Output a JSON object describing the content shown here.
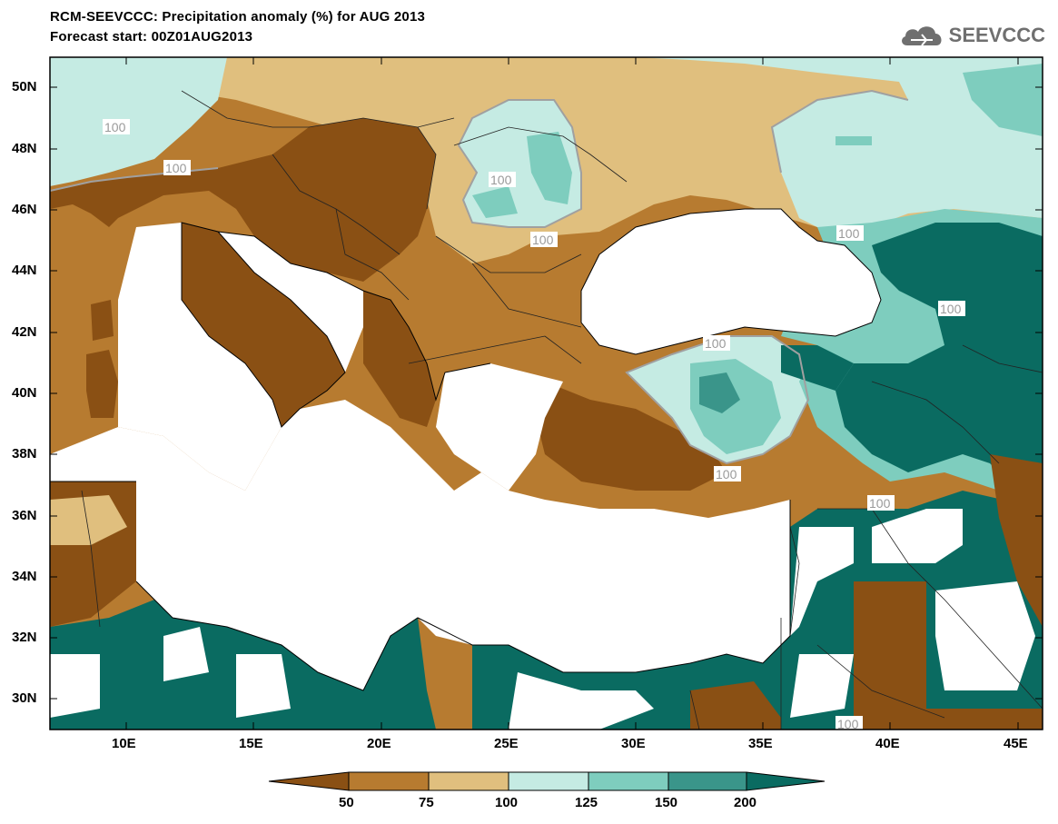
{
  "header": {
    "title_line1": "RCM-SEEVCCC: Precipitation anomaly (%) for AUG 2013",
    "title_line2": "Forecast start: 00Z01AUG2013",
    "logo_text": "SEEVCCC"
  },
  "map": {
    "lat_ticks": [
      "50N",
      "48N",
      "46N",
      "44N",
      "42N",
      "40N",
      "38N",
      "36N",
      "34N",
      "32N",
      "30N"
    ],
    "lon_ticks": [
      "10E",
      "15E",
      "20E",
      "25E",
      "30E",
      "35E",
      "40E",
      "45E"
    ],
    "contour_label": "100"
  },
  "legend": {
    "colors": [
      "#8a5014",
      "#b77b30",
      "#e0bf7e",
      "#c5ebe3",
      "#7ecdbe",
      "#3a958a",
      "#0a6b61"
    ],
    "labels": [
      "50",
      "75",
      "100",
      "125",
      "150",
      "200"
    ]
  },
  "colors": {
    "land_very_dry": "#8a5014",
    "land_dry": "#b77b30",
    "land_slight_dry": "#e0bf7e",
    "land_slight_wet": "#c5ebe3",
    "land_wet": "#7ecdbe",
    "land_very_wet": "#3a958a",
    "land_extreme_wet": "#0a6b61",
    "sea": "#ffffff"
  }
}
